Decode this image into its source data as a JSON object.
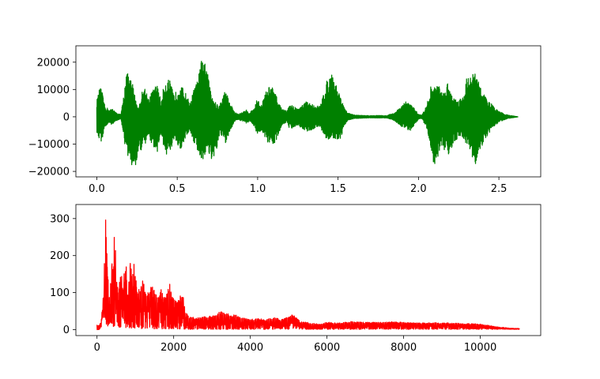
{
  "chart_data": [
    {
      "type": "line",
      "title": "",
      "xlabel": "",
      "ylabel": "",
      "color": "#008000",
      "xlim": [
        -0.13,
        2.76
      ],
      "ylim": [
        -22000,
        26000
      ],
      "xticks": [
        0.0,
        0.5,
        1.0,
        1.5,
        2.0,
        2.5
      ],
      "xtick_labels": [
        "0.0",
        "0.5",
        "1.0",
        "1.5",
        "2.0",
        "2.5"
      ],
      "yticks": [
        -20000,
        -10000,
        0,
        10000,
        20000
      ],
      "ytick_labels": [
        "−20000",
        "−10000",
        "0",
        "10000",
        "20000"
      ],
      "envelope": {
        "x": [
          0.0,
          0.02,
          0.03,
          0.05,
          0.08,
          0.1,
          0.12,
          0.15,
          0.17,
          0.18,
          0.2,
          0.22,
          0.24,
          0.26,
          0.28,
          0.3,
          0.32,
          0.36,
          0.38,
          0.4,
          0.42,
          0.45,
          0.48,
          0.5,
          0.52,
          0.55,
          0.58,
          0.6,
          0.63,
          0.66,
          0.68,
          0.7,
          0.72,
          0.74,
          0.76,
          0.78,
          0.8,
          0.83,
          0.86,
          0.88,
          0.9,
          0.93,
          0.95,
          0.98,
          1.0,
          1.02,
          1.05,
          1.08,
          1.1,
          1.12,
          1.15,
          1.18,
          1.2,
          1.22,
          1.25,
          1.28,
          1.3,
          1.33,
          1.36,
          1.39,
          1.41,
          1.43,
          1.45,
          1.47,
          1.5,
          1.52,
          1.54,
          1.56,
          1.58,
          1.6,
          1.65,
          1.7,
          1.75,
          1.8,
          1.85,
          1.88,
          1.92,
          1.95,
          1.98,
          2.0,
          2.02,
          2.05,
          2.08,
          2.1,
          2.12,
          2.14,
          2.16,
          2.18,
          2.2,
          2.22,
          2.25,
          2.28,
          2.3,
          2.32,
          2.35,
          2.38,
          2.4,
          2.43,
          2.45,
          2.48,
          2.5,
          2.53,
          2.56,
          2.6,
          2.62
        ],
        "upper": [
          6000,
          11000,
          10000,
          4000,
          2500,
          3000,
          1500,
          800,
          9000,
          17000,
          15000,
          13000,
          7000,
          3000,
          9000,
          11000,
          7000,
          11000,
          12000,
          5000,
          13000,
          14000,
          8000,
          10000,
          12000,
          9000,
          5000,
          9500,
          14000,
          24000,
          17000,
          14000,
          8000,
          5000,
          4000,
          7000,
          10000,
          5000,
          1500,
          1000,
          1500,
          2500,
          1500,
          3500,
          7000,
          4000,
          9000,
          12000,
          10000,
          7000,
          3000,
          2000,
          4500,
          4000,
          3000,
          4500,
          5500,
          5000,
          4000,
          4000,
          9000,
          13000,
          16000,
          15000,
          10000,
          7000,
          3000,
          1500,
          1000,
          700,
          500,
          400,
          500,
          400,
          1500,
          3000,
          5500,
          5000,
          2500,
          1000,
          600,
          4000,
          12000,
          11000,
          12000,
          10000,
          9000,
          13000,
          10000,
          7000,
          6000,
          8000,
          15000,
          14000,
          17000,
          12000,
          9000,
          6000,
          5000,
          3000,
          2000,
          1200,
          600,
          200,
          0
        ],
        "lower": [
          -6000,
          -9500,
          -9000,
          -4000,
          -2500,
          -3000,
          -1500,
          -800,
          -8000,
          -14000,
          -15000,
          -19000,
          -18000,
          -14000,
          -12000,
          -11000,
          -7000,
          -12000,
          -13000,
          -6000,
          -13000,
          -15000,
          -9000,
          -11000,
          -12000,
          -8000,
          -5000,
          -9000,
          -13000,
          -17000,
          -12000,
          -14000,
          -17000,
          -14000,
          -8000,
          -7000,
          -10000,
          -5000,
          -1500,
          -1000,
          -1500,
          -2500,
          -1500,
          -3500,
          -7000,
          -5000,
          -9000,
          -11000,
          -10000,
          -8000,
          -3000,
          -2000,
          -4500,
          -4000,
          -3000,
          -4500,
          -5500,
          -5000,
          -4000,
          -4000,
          -7000,
          -8000,
          -8500,
          -8000,
          -9000,
          -8000,
          -3000,
          -1500,
          -1000,
          -700,
          -500,
          -400,
          -500,
          -400,
          -1500,
          -3000,
          -4500,
          -5000,
          -2500,
          -1000,
          -600,
          -4000,
          -12000,
          -20000,
          -16000,
          -10000,
          -12000,
          -14000,
          -13000,
          -10000,
          -7000,
          -8000,
          -11000,
          -12000,
          -18000,
          -13000,
          -10000,
          -7000,
          -5000,
          -3000,
          -2000,
          -1200,
          -600,
          -200,
          0
        ]
      }
    },
    {
      "type": "line",
      "title": "",
      "xlabel": "",
      "ylabel": "",
      "color": "#ff0000",
      "xlim": [
        -551,
        11576
      ],
      "ylim": [
        -16,
        338
      ],
      "xticks": [
        0,
        2000,
        4000,
        6000,
        8000,
        10000
      ],
      "xtick_labels": [
        "0",
        "2000",
        "4000",
        "6000",
        "8000",
        "10000"
      ],
      "yticks": [
        0,
        100,
        200,
        300
      ],
      "ytick_labels": [
        "0",
        "100",
        "200",
        "300"
      ],
      "envelope": {
        "x": [
          0,
          50,
          100,
          150,
          180,
          230,
          260,
          300,
          330,
          380,
          420,
          460,
          500,
          560,
          620,
          680,
          720,
          760,
          800,
          870,
          920,
          980,
          1050,
          1100,
          1150,
          1200,
          1280,
          1330,
          1400,
          1470,
          1550,
          1600,
          1680,
          1750,
          1800,
          1850,
          1900,
          1980,
          2050,
          2100,
          2200,
          2260,
          2300,
          2400,
          2600,
          2800,
          3000,
          3200,
          3300,
          3400,
          3500,
          3600,
          3700,
          3800,
          4000,
          4200,
          4400,
          4600,
          4800,
          5000,
          5100,
          5300,
          5600,
          5800,
          6000,
          6300,
          6600,
          7000,
          7400,
          7700,
          8000,
          8400,
          8800,
          9200,
          9500,
          9800,
          10000,
          10200,
          10400,
          10600,
          10800,
          11025
        ],
        "upper": [
          15,
          10,
          20,
          75,
          130,
          320,
          230,
          130,
          90,
          200,
          170,
          322,
          140,
          110,
          160,
          120,
          180,
          175,
          90,
          190,
          140,
          190,
          100,
          110,
          120,
          135,
          95,
          105,
          115,
          115,
          95,
          90,
          110,
          90,
          85,
          115,
          125,
          85,
          80,
          75,
          97,
          85,
          50,
          35,
          32,
          35,
          38,
          48,
          50,
          45,
          40,
          42,
          35,
          32,
          28,
          30,
          28,
          33,
          28,
          35,
          42,
          22,
          18,
          15,
          20,
          18,
          22,
          20,
          20,
          22,
          20,
          18,
          19,
          18,
          17,
          16,
          15,
          12,
          8,
          6,
          4,
          3
        ],
        "lower": [
          0,
          0,
          5,
          10,
          20,
          15,
          10,
          10,
          10,
          10,
          8,
          10,
          8,
          8,
          5,
          5,
          5,
          5,
          4,
          4,
          4,
          4,
          3,
          3,
          3,
          3,
          3,
          3,
          2,
          2,
          2,
          2,
          2,
          2,
          2,
          2,
          2,
          2,
          2,
          2,
          1,
          1,
          1,
          1,
          1,
          1,
          1,
          1,
          1,
          1,
          1,
          1,
          1,
          1,
          1,
          1,
          1,
          1,
          1,
          1,
          1,
          1,
          1,
          1,
          1,
          1,
          1,
          1,
          1,
          1,
          1,
          1,
          1,
          1,
          1,
          1,
          1,
          1,
          1,
          1,
          1,
          1
        ]
      }
    }
  ]
}
